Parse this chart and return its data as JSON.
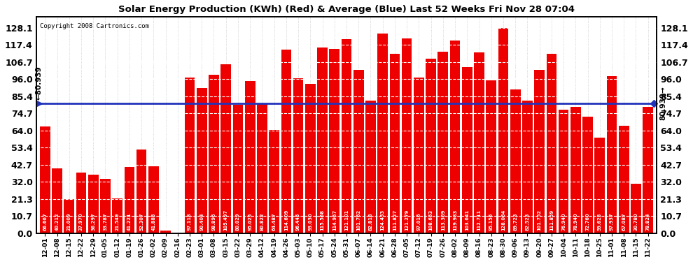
{
  "title": "Solar Energy Production (KWh) (Red) & Average (Blue) Last 52 Weeks Fri Nov 28 07:04",
  "copyright": "Copyright 2008 Cartronics.com",
  "average_value": 80.939,
  "bar_color": "#EE0000",
  "avg_line_color": "#2233BB",
  "background_color": "#FFFFFF",
  "grid_color": "#BBBBBB",
  "ytick_values": [
    0.0,
    10.7,
    21.3,
    32.0,
    42.7,
    53.4,
    64.0,
    74.7,
    85.4,
    96.0,
    106.7,
    117.4,
    128.1
  ],
  "ylim_max": 135,
  "categories": [
    "12-01",
    "12-08",
    "12-15",
    "12-22",
    "12-29",
    "01-05",
    "01-12",
    "01-19",
    "01-26",
    "02-02",
    "02-09",
    "02-16",
    "02-23",
    "03-01",
    "03-08",
    "03-15",
    "03-22",
    "03-29",
    "04-12",
    "04-19",
    "04-26",
    "05-03",
    "05-10",
    "05-17",
    "05-24",
    "05-31",
    "06-07",
    "06-14",
    "06-21",
    "06-28",
    "07-05",
    "07-12",
    "07-19",
    "07-26",
    "08-02",
    "08-09",
    "08-16",
    "08-23",
    "08-30",
    "09-06",
    "09-13",
    "09-20",
    "09-27",
    "10-04",
    "10-11",
    "10-18",
    "10-25",
    "11-01",
    "11-08",
    "11-15",
    "11-22"
  ],
  "values": [
    66.667,
    40.212,
    21.009,
    37.97,
    36.297,
    33.787,
    21.549,
    41.221,
    52.307,
    41.885,
    1.413,
    0.0,
    97.118,
    90.404,
    98.896,
    105.497,
    80.029,
    95.025,
    80.822,
    64.487,
    114.609,
    96.445,
    93.03,
    115.568,
    114.957,
    121.101,
    101.762,
    82.818,
    124.453,
    111.827,
    121.279,
    97.016,
    108.653,
    113.369,
    119.983,
    103.641,
    112.711,
    95.156,
    128.064,
    89.723,
    82.523,
    101.752,
    111.859,
    76.94,
    78.94,
    72.76,
    59.625,
    97.937,
    67.087,
    30.78,
    78.824
  ]
}
